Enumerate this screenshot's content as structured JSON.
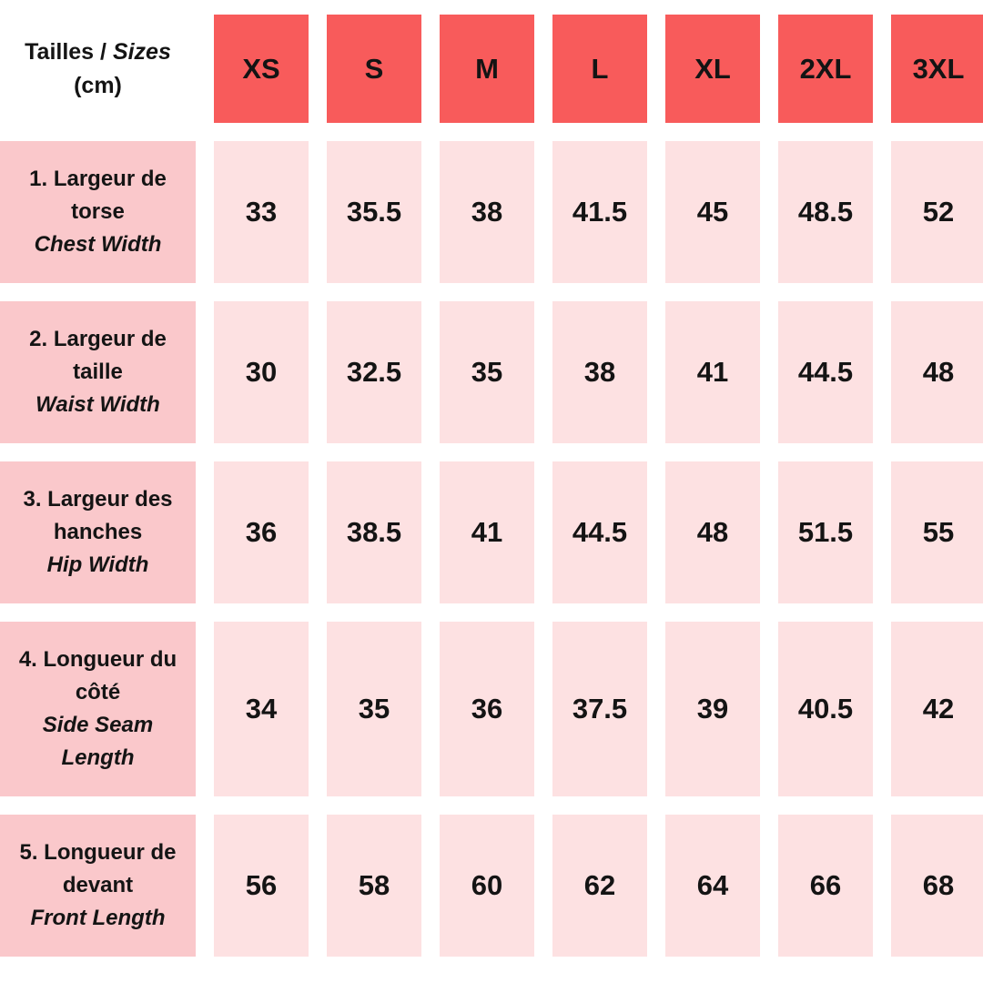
{
  "corner": {
    "fr": "Tailles",
    "separator": " / ",
    "en": "Sizes",
    "unit": "(cm)"
  },
  "chart_data": {
    "type": "table",
    "title": "Tailles / Sizes (cm)",
    "unit": "cm",
    "columns": [
      "XS",
      "S",
      "M",
      "L",
      "XL",
      "2XL",
      "3XL"
    ],
    "rows": [
      {
        "fr": "1. Largeur de torse",
        "en": "Chest Width",
        "values": [
          33,
          35.5,
          38,
          41.5,
          45,
          48.5,
          52
        ]
      },
      {
        "fr": "2. Largeur de taille",
        "en": "Waist Width",
        "values": [
          30,
          32.5,
          35,
          38,
          41,
          44.5,
          48
        ]
      },
      {
        "fr": "3. Largeur des hanches",
        "en": "Hip Width",
        "values": [
          36,
          38.5,
          41,
          44.5,
          48,
          51.5,
          55
        ]
      },
      {
        "fr": "4. Longueur du côté",
        "en": "Side Seam Length",
        "values": [
          34,
          35,
          36,
          37.5,
          39,
          40.5,
          42
        ]
      },
      {
        "fr": "5. Longueur de devant",
        "en": "Front Length",
        "values": [
          56,
          58,
          60,
          62,
          64,
          66,
          68
        ]
      }
    ]
  },
  "colors": {
    "page_bg": "#FFFFFF",
    "header_bg": "#F85B5B",
    "label_bg": "#FAC8CB",
    "cell_bg": "#FDE1E2",
    "text": "#141414"
  }
}
